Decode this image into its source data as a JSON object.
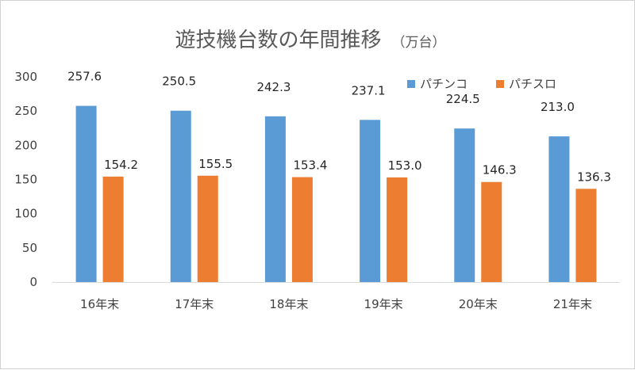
{
  "chart_data": {
    "type": "bar",
    "title": "遊技機台数の年間推移",
    "unit": "（万台）",
    "categories": [
      "16年末",
      "17年末",
      "18年末",
      "19年末",
      "20年末",
      "21年末"
    ],
    "series": [
      {
        "name": "パチンコ",
        "color": "#5b9bd5",
        "values": [
          257.6,
          250.5,
          242.3,
          237.1,
          224.5,
          213.0
        ]
      },
      {
        "name": "パチスロ",
        "color": "#ed7d31",
        "values": [
          154.2,
          155.5,
          153.4,
          153.0,
          146.3,
          136.3
        ]
      }
    ],
    "ylim": [
      0,
      300
    ],
    "yticks": [
      0,
      50,
      100,
      150,
      200,
      250,
      300
    ],
    "grid": false,
    "legend": "top-right",
    "data_labels": true
  }
}
